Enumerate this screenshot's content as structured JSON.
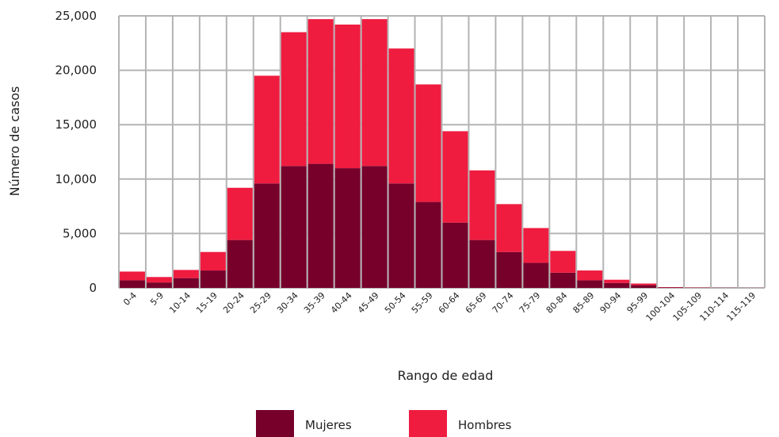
{
  "chart_data": {
    "type": "bar",
    "stacked": true,
    "title": "",
    "xlabel": "Rango de edad",
    "ylabel": "Número de casos",
    "ylim": [
      0,
      25000
    ],
    "yticks": [
      0,
      5000,
      10000,
      15000,
      20000,
      25000
    ],
    "ytick_labels": [
      "0",
      "5,000",
      "10,000",
      "15,000",
      "20,000",
      "25,000"
    ],
    "grid": true,
    "legend_position": "bottom",
    "categories": [
      "0-4",
      "5-9",
      "10-14",
      "15-19",
      "20-24",
      "25-29",
      "30-34",
      "35-39",
      "40-44",
      "45-49",
      "50-54",
      "55-59",
      "60-64",
      "65-69",
      "70-74",
      "75-79",
      "80-84",
      "85-89",
      "90-94",
      "95-99",
      "100-104",
      "105-109",
      "110-114",
      "115-119"
    ],
    "series": [
      {
        "name": "Mujeres",
        "color": "#76002a",
        "values": [
          700,
          500,
          900,
          1600,
          4400,
          9600,
          11200,
          11400,
          11000,
          11200,
          9600,
          7900,
          6000,
          4400,
          3300,
          2300,
          1400,
          700,
          450,
          250,
          40,
          20,
          10,
          5
        ]
      },
      {
        "name": "Hombres",
        "color": "#ef1c40",
        "values": [
          800,
          500,
          750,
          1700,
          4800,
          9900,
          12300,
          13300,
          13200,
          13500,
          12400,
          10800,
          8400,
          6400,
          4400,
          3200,
          2000,
          900,
          300,
          150,
          30,
          20,
          10,
          5
        ]
      }
    ]
  }
}
